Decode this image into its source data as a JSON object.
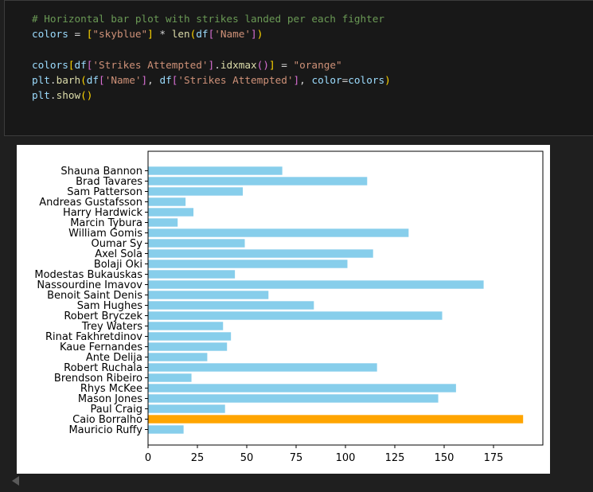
{
  "code_cell": {
    "lines": [
      [
        {
          "t": "# Horizontal bar plot with strikes landed per each fighter",
          "c": "tok-comment"
        }
      ],
      [
        {
          "t": "colors",
          "c": "tok-var"
        },
        {
          "t": " = ",
          "c": "tok-op"
        },
        {
          "t": "[",
          "c": "tok-bracket1"
        },
        {
          "t": "\"skyblue\"",
          "c": "tok-str"
        },
        {
          "t": "]",
          "c": "tok-bracket1"
        },
        {
          "t": " * ",
          "c": "tok-op"
        },
        {
          "t": "len",
          "c": "tok-func"
        },
        {
          "t": "(",
          "c": "tok-bracket1"
        },
        {
          "t": "df",
          "c": "tok-var"
        },
        {
          "t": "[",
          "c": "tok-bracket2"
        },
        {
          "t": "'Name'",
          "c": "tok-str"
        },
        {
          "t": "]",
          "c": "tok-bracket2"
        },
        {
          "t": ")",
          "c": "tok-bracket1"
        }
      ],
      [],
      [
        {
          "t": "colors",
          "c": "tok-var"
        },
        {
          "t": "[",
          "c": "tok-bracket1"
        },
        {
          "t": "df",
          "c": "tok-var"
        },
        {
          "t": "[",
          "c": "tok-bracket2"
        },
        {
          "t": "'Strikes Attempted'",
          "c": "tok-str"
        },
        {
          "t": "]",
          "c": "tok-bracket2"
        },
        {
          "t": ".",
          "c": "tok-plain"
        },
        {
          "t": "idxmax",
          "c": "tok-func"
        },
        {
          "t": "(",
          "c": "tok-bracket2"
        },
        {
          "t": ")",
          "c": "tok-bracket2"
        },
        {
          "t": "]",
          "c": "tok-bracket1"
        },
        {
          "t": " = ",
          "c": "tok-op"
        },
        {
          "t": "\"orange\"",
          "c": "tok-str"
        }
      ],
      [
        {
          "t": "plt",
          "c": "tok-var"
        },
        {
          "t": ".",
          "c": "tok-plain"
        },
        {
          "t": "barh",
          "c": "tok-func"
        },
        {
          "t": "(",
          "c": "tok-bracket1"
        },
        {
          "t": "df",
          "c": "tok-var"
        },
        {
          "t": "[",
          "c": "tok-bracket2"
        },
        {
          "t": "'Name'",
          "c": "tok-str"
        },
        {
          "t": "]",
          "c": "tok-bracket2"
        },
        {
          "t": ", ",
          "c": "tok-plain"
        },
        {
          "t": "df",
          "c": "tok-var"
        },
        {
          "t": "[",
          "c": "tok-bracket2"
        },
        {
          "t": "'Strikes Attempted'",
          "c": "tok-str"
        },
        {
          "t": "]",
          "c": "tok-bracket2"
        },
        {
          "t": ", ",
          "c": "tok-plain"
        },
        {
          "t": "color",
          "c": "tok-var"
        },
        {
          "t": "=",
          "c": "tok-op"
        },
        {
          "t": "colors",
          "c": "tok-var"
        },
        {
          "t": ")",
          "c": "tok-bracket1"
        }
      ],
      [
        {
          "t": "plt",
          "c": "tok-var"
        },
        {
          "t": ".",
          "c": "tok-plain"
        },
        {
          "t": "show",
          "c": "tok-func"
        },
        {
          "t": "()",
          "c": "tok-bracket1"
        }
      ]
    ]
  },
  "chart_data": {
    "type": "bar",
    "orientation": "horizontal",
    "categories": [
      "Shauna Bannon",
      "Brad Tavares",
      "Sam Patterson",
      "Andreas Gustafsson",
      "Harry Hardwick",
      "Marcin Tybura",
      "William Gomis",
      "Oumar Sy",
      "Axel Sola",
      "Bolaji Oki",
      "Modestas Bukauskas",
      "Nassourdine Imavov",
      "Benoit Saint Denis",
      "Sam Hughes",
      "Robert Bryczek",
      "Trey Waters",
      "Rinat Fakhretdinov",
      "Kaue Fernandes",
      "Ante Delija",
      "Robert Ruchala",
      "Brendson Ribeiro",
      "Rhys McKee",
      "Mason Jones",
      "Paul Craig",
      "Caio Borralho",
      "Mauricio Ruffy"
    ],
    "values": [
      68,
      111,
      48,
      19,
      23,
      15,
      132,
      49,
      114,
      101,
      44,
      170,
      61,
      84,
      149,
      38,
      42,
      40,
      30,
      116,
      22,
      156,
      147,
      39,
      190,
      18
    ],
    "colors": [
      "skyblue",
      "skyblue",
      "skyblue",
      "skyblue",
      "skyblue",
      "skyblue",
      "skyblue",
      "skyblue",
      "skyblue",
      "skyblue",
      "skyblue",
      "skyblue",
      "skyblue",
      "skyblue",
      "skyblue",
      "skyblue",
      "skyblue",
      "skyblue",
      "skyblue",
      "skyblue",
      "skyblue",
      "skyblue",
      "skyblue",
      "skyblue",
      "orange",
      "skyblue"
    ],
    "color_map": {
      "skyblue": "#87ceeb",
      "orange": "#ffa500"
    },
    "xticks": [
      "0",
      "25",
      "50",
      "75",
      "100",
      "125",
      "150",
      "175"
    ],
    "xlim": [
      0,
      200
    ],
    "title": "",
    "xlabel": "",
    "ylabel": "",
    "grid": false
  }
}
